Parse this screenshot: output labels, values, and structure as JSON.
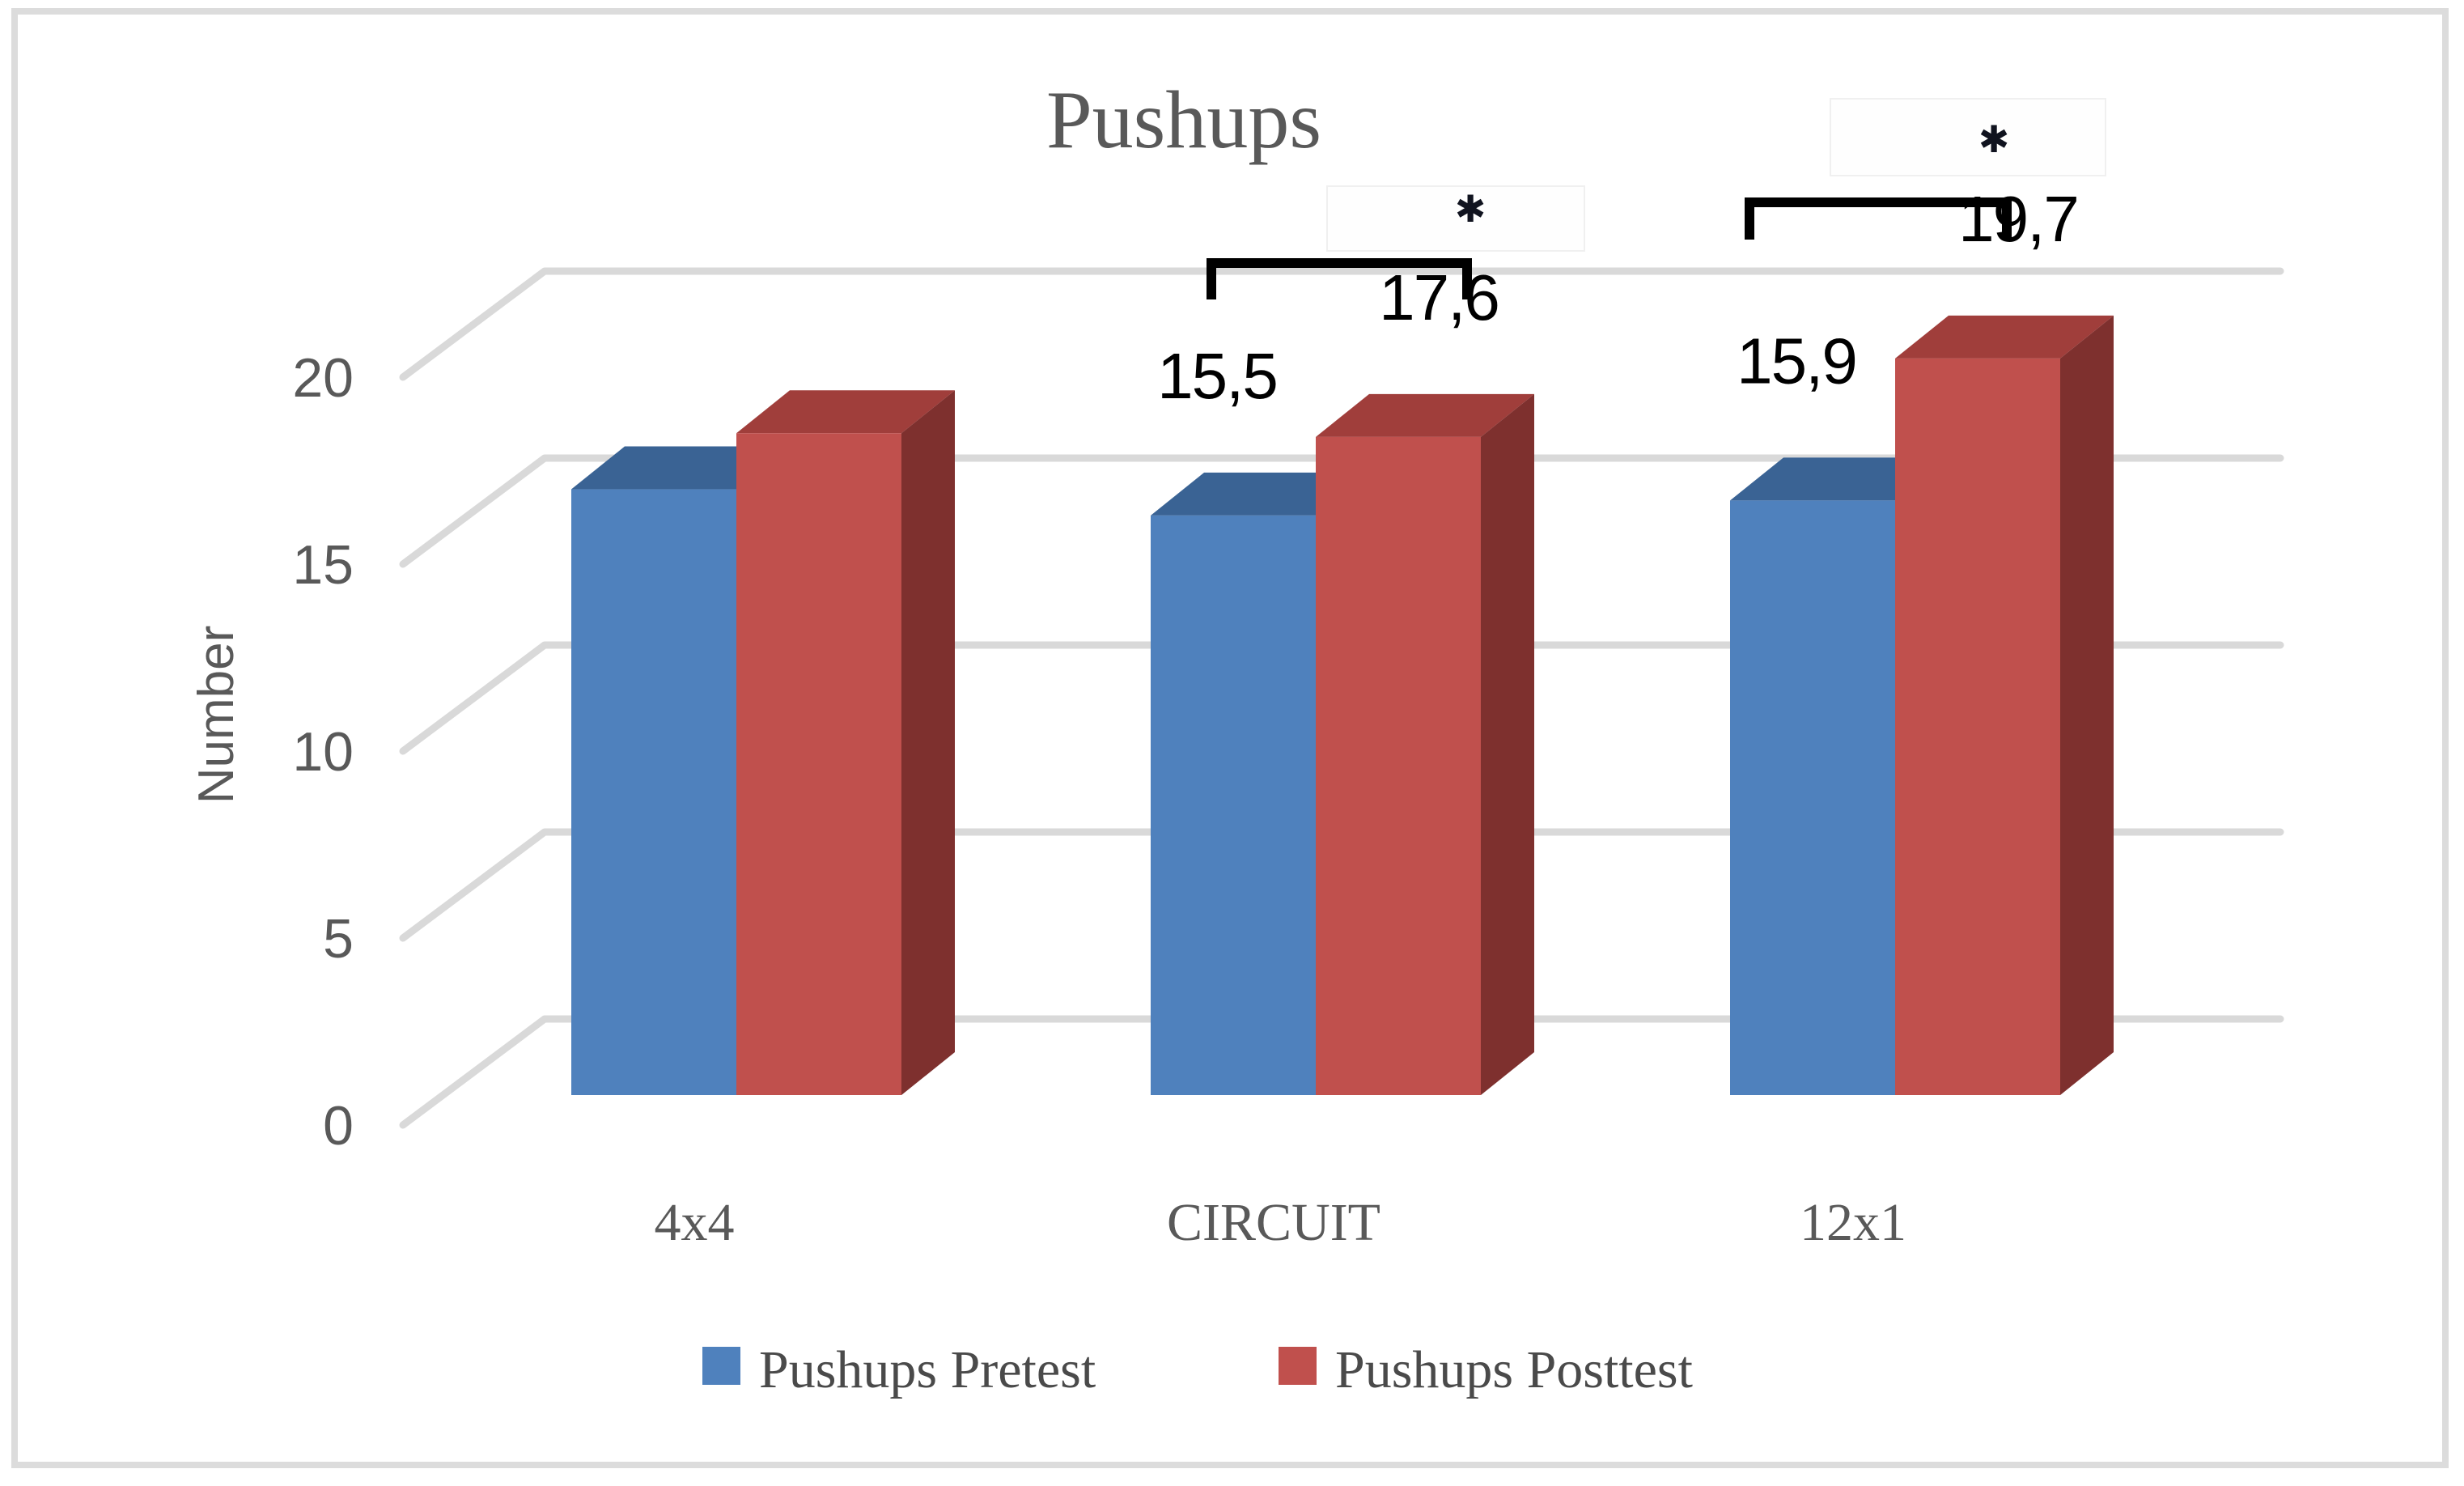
{
  "window": {
    "background": "#ffffff",
    "border_color": "#dcdcdc"
  },
  "chart_data": {
    "type": "bar",
    "projection": "3d-column",
    "title": "Pushups",
    "xlabel": "",
    "ylabel": "Number",
    "ylim": [
      0,
      20
    ],
    "yticks": [
      0,
      5,
      10,
      15,
      20
    ],
    "grid": true,
    "legend_position": "bottom",
    "decimal_separator": ",",
    "categories": [
      "4x4",
      "CIRCUIT",
      "12x1"
    ],
    "series": [
      {
        "name": "Pushups Pretest",
        "color": "#4F81BD",
        "top_shade": "#3A6394",
        "side_shade": "#2E5077",
        "values": [
          16.2,
          15.5,
          15.9
        ],
        "data_labels": [
          "",
          "15,5",
          "15,9"
        ]
      },
      {
        "name": "Pushups Posttest",
        "color": "#C0504D",
        "top_shade": "#A03E3B",
        "side_shade": "#7E302E",
        "values": [
          17.7,
          17.6,
          19.7
        ],
        "data_labels": [
          "",
          "17,6",
          "19,7"
        ]
      }
    ],
    "annotations": [
      {
        "type": "significance-bracket",
        "category": "CIRCUIT",
        "marker": "✱"
      },
      {
        "type": "significance-bracket",
        "category": "12x1",
        "marker": "✱"
      }
    ],
    "text_color": "#595959",
    "data_label_color": "#000000",
    "gridline_color": "#d9d9d9"
  }
}
